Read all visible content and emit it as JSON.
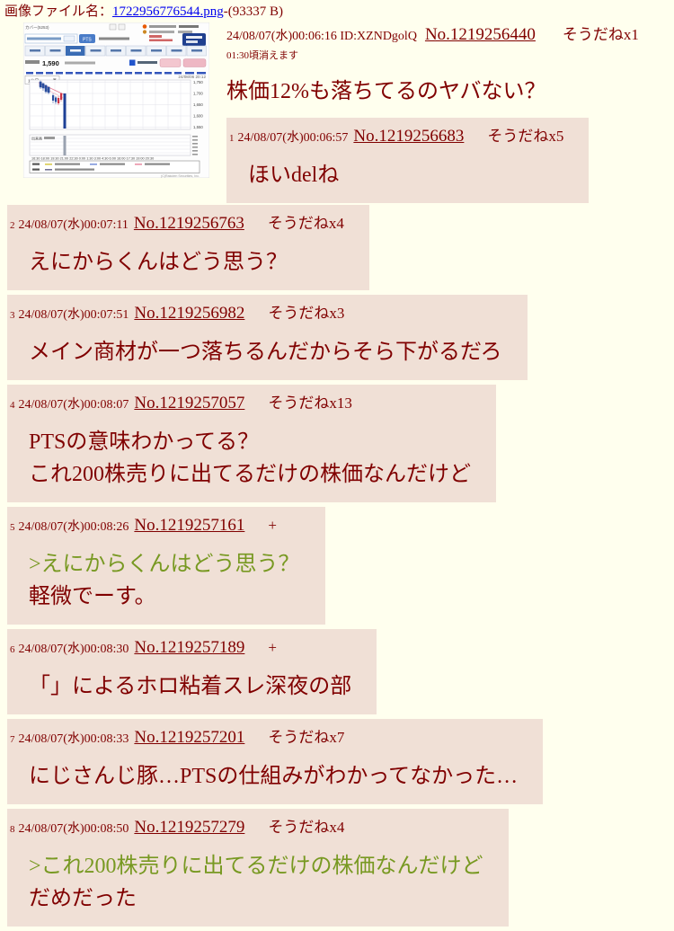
{
  "colors": {
    "page_bg": "#ffffee",
    "reply_bg": "#f0e0d6",
    "text": "#800000",
    "quote_green": "#789922",
    "link_blue": "#0000ee",
    "chart_tab_blue": "#3a6cb4",
    "chart_bar_blue": "#1d3f96",
    "chart_candle_red": "#cc3344"
  },
  "file_line": {
    "label": "画像ファイル名：",
    "filename": "1722956776544.png",
    "size": "-(93337 B)"
  },
  "op": {
    "date": "24/08/07(水)00:06:16 ID:XZNDgolQ",
    "no": "No.1219256440",
    "sodane": "そうだねx1",
    "expire": "01:30頃消えます",
    "body": "株価12%も落ちてるのヤバない？"
  },
  "replies": [
    {
      "index": "1",
      "date": "24/08/07(水)00:06:57",
      "no": "No.1219256683",
      "sodane": "そうだねx5",
      "lines": [
        {
          "text": "ほいdelね",
          "quote": false
        }
      ]
    },
    {
      "index": "2",
      "date": "24/08/07(水)00:07:11",
      "no": "No.1219256763",
      "sodane": "そうだねx4",
      "lines": [
        {
          "text": "えにからくんはどう思う？",
          "quote": false
        }
      ]
    },
    {
      "index": "3",
      "date": "24/08/07(水)00:07:51",
      "no": "No.1219256982",
      "sodane": "そうだねx3",
      "lines": [
        {
          "text": "メイン商材が一つ落ちるんだからそら下がるだろ",
          "quote": false
        }
      ]
    },
    {
      "index": "4",
      "date": "24/08/07(水)00:08:07",
      "no": "No.1219257057",
      "sodane": "そうだねx13",
      "lines": [
        {
          "text": "PTSの意味わかってる？",
          "quote": false
        },
        {
          "text": "これ200株売りに出てるだけの株価なんだけど",
          "quote": false
        }
      ]
    },
    {
      "index": "5",
      "date": "24/08/07(水)00:08:26",
      "no": "No.1219257161",
      "sodane": "+",
      "lines": [
        {
          "text": ">えにからくんはどう思う？",
          "quote": true
        },
        {
          "text": "軽微でーす。",
          "quote": false
        }
      ]
    },
    {
      "index": "6",
      "date": "24/08/07(水)00:08:30",
      "no": "No.1219257189",
      "sodane": "+",
      "lines": [
        {
          "text": "「」によるホロ粘着スレ深夜の部",
          "quote": false
        }
      ]
    },
    {
      "index": "7",
      "date": "24/08/07(水)00:08:33",
      "no": "No.1219257201",
      "sodane": "そうだねx7",
      "lines": [
        {
          "text": "にじさんじ豚…PTSの仕組みがわかってなかった…",
          "quote": false
        }
      ]
    },
    {
      "index": "8",
      "date": "24/08/07(水)00:08:50",
      "no": "No.1219257279",
      "sodane": "そうだねx4",
      "lines": [
        {
          "text": ">これ200株売りに出てるだけの株価なんだけど",
          "quote": true
        },
        {
          "text": "だめだった",
          "quote": false
        }
      ]
    }
  ],
  "thumbnail": {
    "site_title": "カバー(5253)",
    "pts_button": "PTS",
    "price": "1,590",
    "timeframe": "1分足",
    "datetime": "24/08/06 20:12",
    "y_labels": [
      "1,750",
      "1,700",
      "1,650",
      "1,600",
      "1,550"
    ],
    "volume_label": "出来高",
    "x_labels": "16:30 18:00 19:30 21:00 22:30 0:00 1:30 3:00 4:30 6:00  16:00 17:30 19:00 20:30",
    "copyright": "(C)Rakuten Securities, Inc."
  }
}
